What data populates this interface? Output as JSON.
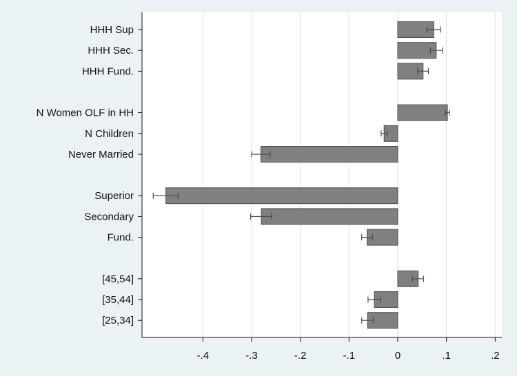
{
  "chart_data": {
    "type": "bar",
    "orientation": "horizontal",
    "title": "",
    "xlabel": "",
    "ylabel": "",
    "xlim": [
      -0.52,
      0.215
    ],
    "x_ticks": [
      -0.4,
      -0.3,
      -0.2,
      -0.1,
      0,
      0.1,
      0.2
    ],
    "x_tick_labels": [
      "-.4",
      "-.3",
      "-.2",
      "-.1",
      "0",
      ".1",
      ".2"
    ],
    "grid": "vertical gridlines at x ticks",
    "legend": "none",
    "categories": [
      "HHH Sup",
      "HHH Sec.",
      "HHH Fund.",
      "N Women OLF in HH",
      "N Children",
      "Never Married",
      "Superior",
      "Secondary",
      "Fund.",
      "[45,54]",
      "[35,44]",
      "[25,34]"
    ],
    "groups": [
      [
        "HHH Sup",
        "HHH Sec.",
        "HHH Fund."
      ],
      [
        "N Women OLF in HH",
        "N Children",
        "Never Married"
      ],
      [
        "Superior",
        "Secondary",
        "Fund."
      ],
      [
        "[45,54]",
        "[35,44]",
        "[25,34]"
      ]
    ],
    "values": [
      0.074,
      0.079,
      0.052,
      0.102,
      -0.028,
      -0.281,
      -0.476,
      -0.28,
      -0.063,
      0.042,
      -0.048,
      -0.062
    ],
    "ci_low": [
      0.06,
      0.067,
      0.041,
      0.098,
      -0.034,
      -0.3,
      -0.502,
      -0.302,
      -0.074,
      0.03,
      -0.061,
      -0.074
    ],
    "ci_high": [
      0.088,
      0.092,
      0.063,
      0.106,
      -0.022,
      -0.262,
      -0.451,
      -0.259,
      -0.052,
      0.053,
      -0.035,
      -0.05
    ]
  },
  "colors": {
    "background": "#eaf2f3",
    "plot_background": "#ffffff",
    "bar_fill": "#808080",
    "bar_stroke": "#4d4d4d",
    "gridline": "#dde3e3",
    "axis": "#111111",
    "error_bar": "#4a4a4a"
  }
}
